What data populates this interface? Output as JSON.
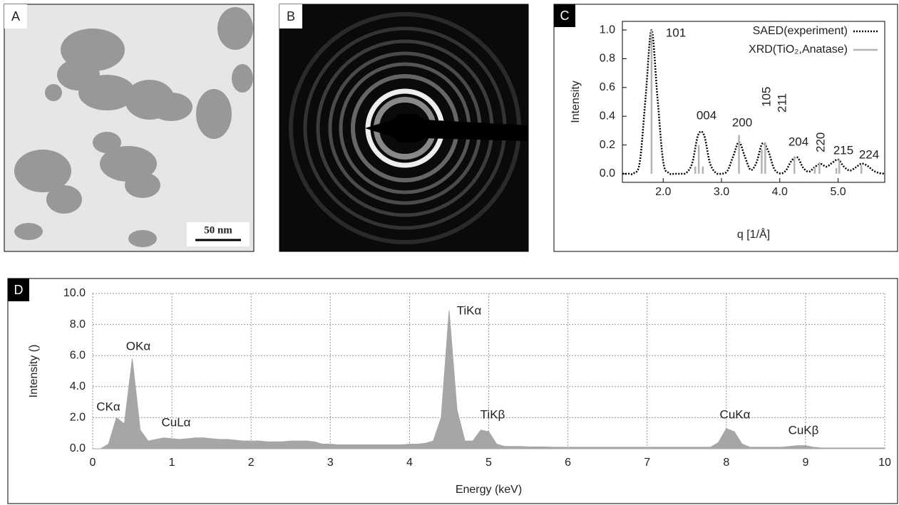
{
  "images": [
    {
      "label": "A",
      "scale_bar": "50 nm"
    },
    {
      "label": "B"
    }
  ],
  "chart_data": [
    {
      "type": "line",
      "panel": "C",
      "xlabel": "q [1/Å]",
      "ylabel": "Intensity",
      "xlim": [
        1.3,
        5.8
      ],
      "ylim": [
        -0.06,
        1.06
      ],
      "xticks": [
        {
          "value": 2,
          "label": "2.0"
        },
        {
          "value": 3,
          "label": "3.0"
        },
        {
          "value": 4,
          "label": "4.0"
        },
        {
          "value": 5,
          "label": "5.0"
        }
      ],
      "yticks": [
        {
          "value": 0,
          "label": "0.0"
        },
        0.2,
        0.4,
        0.6,
        0.8,
        {
          "value": 1,
          "label": "1.0"
        }
      ],
      "legend": "upper right",
      "series": [
        {
          "name": "SAED(experiment)",
          "color": "#000000",
          "style": "dotted",
          "x": [
            1.3,
            1.4,
            1.5,
            1.6,
            1.7,
            1.8,
            1.9,
            2.0,
            2.1,
            2.2,
            2.3,
            2.4,
            2.5,
            2.6,
            2.7,
            2.8,
            2.9,
            3.0,
            3.1,
            3.2,
            3.3,
            3.4,
            3.5,
            3.6,
            3.7,
            3.8,
            3.9,
            4.0,
            4.1,
            4.2,
            4.3,
            4.4,
            4.5,
            4.6,
            4.7,
            4.8,
            4.9,
            5.0,
            5.1,
            5.2,
            5.3,
            5.4,
            5.5,
            5.6,
            5.7,
            5.8
          ],
          "values": [
            0,
            0,
            0.004,
            0.085,
            0.54,
            1.0,
            0.54,
            0.085,
            0.004,
            0,
            0,
            0.007,
            0.077,
            0.27,
            0.27,
            0.077,
            0.007,
            0,
            0.019,
            0.12,
            0.22,
            0.12,
            0.027,
            0.078,
            0.21,
            0.16,
            0.037,
            0.002,
            0.02,
            0.089,
            0.114,
            0.042,
            0.014,
            0.047,
            0.068,
            0.049,
            0.076,
            0.098,
            0.049,
            0.022,
            0.043,
            0.07,
            0.056,
            0.023,
            0.005,
            0
          ]
        },
        {
          "name": "XRD(TiO₂,Anatase)",
          "color": "#b3b3b3",
          "style": "stem",
          "x": [
            1.8,
            2.55,
            2.61,
            2.68,
            3.3,
            3.69,
            3.75,
            4.25,
            4.6,
            4.68,
            4.97,
            5.02,
            5.4
          ],
          "values": [
            1.0,
            0.05,
            0.2,
            0.05,
            0.27,
            0.17,
            0.22,
            0.12,
            0.05,
            0.08,
            0.04,
            0.1,
            0.06
          ]
        }
      ],
      "annotations": [
        "101",
        "004",
        "200",
        "105",
        "211",
        "204",
        "220",
        "215",
        "224"
      ]
    },
    {
      "type": "area",
      "panel": "D",
      "xlabel": "Energy (keV)",
      "ylabel": "Intensity ()",
      "xlim": [
        0,
        10
      ],
      "ylim": [
        0,
        10
      ],
      "xticks": [
        0,
        1,
        2,
        3,
        4,
        5,
        6,
        7,
        8,
        9,
        10
      ],
      "yticks": [
        {
          "value": 0,
          "label": "0.0"
        },
        {
          "value": 2,
          "label": "2.0"
        },
        {
          "value": 4,
          "label": "4.0"
        },
        {
          "value": 6,
          "label": "6.0"
        },
        {
          "value": 8,
          "label": "8.0"
        },
        {
          "value": 10,
          "label": "10.0"
        }
      ],
      "grid": true,
      "color": "#a6a6a6",
      "x": [
        0,
        0.1,
        0.2,
        0.3,
        0.4,
        0.5,
        0.6,
        0.7,
        0.8,
        0.9,
        1,
        1.1,
        1.2,
        1.3,
        1.4,
        1.5,
        1.6,
        1.7,
        1.8,
        1.9,
        2,
        2.1,
        2.2,
        2.3,
        2.4,
        2.5,
        2.6,
        2.7,
        2.8,
        2.9,
        3,
        3.1,
        3.2,
        3.3,
        3.4,
        3.5,
        3.6,
        3.7,
        3.8,
        3.9,
        4,
        4.1,
        4.2,
        4.3,
        4.4,
        4.5,
        4.6,
        4.7,
        4.8,
        4.9,
        5,
        5.1,
        5.2,
        5.3,
        5.4,
        5.5,
        5.6,
        5.7,
        5.8,
        5.9,
        6,
        6.1,
        6.2,
        6.3,
        6.4,
        6.5,
        6.6,
        6.7,
        6.8,
        6.9,
        7,
        7.1,
        7.2,
        7.3,
        7.4,
        7.5,
        7.6,
        7.7,
        7.8,
        7.9,
        8,
        8.1,
        8.2,
        8.3,
        8.4,
        8.5,
        8.6,
        8.7,
        8.8,
        8.9,
        9,
        9.1,
        9.2,
        9.3,
        9.4,
        9.5,
        9.6,
        9.7,
        9.8,
        9.9,
        10
      ],
      "values": [
        0,
        0,
        0.3,
        2.0,
        1.6,
        5.8,
        1.2,
        0.5,
        0.6,
        0.7,
        0.65,
        0.6,
        0.65,
        0.7,
        0.7,
        0.65,
        0.6,
        0.6,
        0.55,
        0.5,
        0.5,
        0.5,
        0.45,
        0.45,
        0.45,
        0.5,
        0.5,
        0.5,
        0.45,
        0.3,
        0.3,
        0.25,
        0.25,
        0.25,
        0.25,
        0.25,
        0.25,
        0.25,
        0.25,
        0.25,
        0.3,
        0.3,
        0.35,
        0.5,
        2.0,
        8.9,
        2.5,
        0.5,
        0.5,
        1.2,
        1.1,
        0.3,
        0.15,
        0.15,
        0.15,
        0.12,
        0.12,
        0.12,
        0.1,
        0.1,
        0.1,
        0.1,
        0.1,
        0.1,
        0.1,
        0.1,
        0.1,
        0.1,
        0.1,
        0.1,
        0.1,
        0.1,
        0.1,
        0.1,
        0.1,
        0.1,
        0.1,
        0.1,
        0.1,
        0.4,
        1.3,
        1.1,
        0.3,
        0.1,
        0.1,
        0.1,
        0.1,
        0.1,
        0.15,
        0.2,
        0.2,
        0.1,
        0.05,
        0.05,
        0.05,
        0.05,
        0.05,
        0.05,
        0.05,
        0.05,
        0.05
      ],
      "annotations": [
        "CKα",
        "OKα",
        "CuLα",
        "TiKα",
        "TiKβ",
        "CuKα",
        "CuKβ"
      ]
    }
  ]
}
